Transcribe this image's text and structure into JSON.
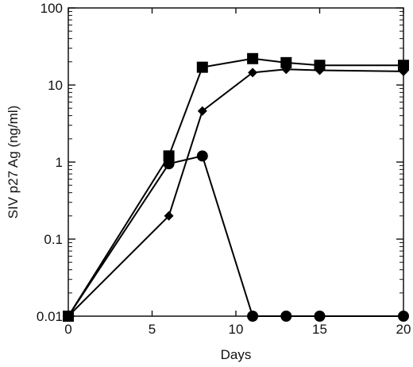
{
  "chart_data": {
    "type": "line",
    "title": "",
    "xlabel": "Days",
    "ylabel": "SIV p27 Ag (ng/ml)",
    "xlim": [
      0,
      20
    ],
    "ylim": [
      0.01,
      100
    ],
    "yscale": "log",
    "grid": false,
    "legend": "none",
    "x_ticks": [
      0,
      5,
      10,
      15,
      20
    ],
    "x_tick_labels": [
      "0",
      "5",
      "10",
      "15",
      "20"
    ],
    "y_ticks": [
      0.01,
      0.1,
      1,
      10,
      100
    ],
    "y_tick_labels": [
      "0.01",
      "0.1",
      "1",
      "10",
      "100"
    ],
    "series": [
      {
        "marker": "square",
        "color": "#000000",
        "points": [
          [
            0,
            0.01
          ],
          [
            6,
            1.2
          ],
          [
            8,
            17
          ],
          [
            11,
            22
          ],
          [
            13,
            19.5
          ],
          [
            15,
            18
          ],
          [
            20,
            18
          ]
        ]
      },
      {
        "marker": "diamond",
        "color": "#000000",
        "points": [
          [
            0,
            0.01
          ],
          [
            6,
            0.2
          ],
          [
            8,
            4.6
          ],
          [
            11,
            14.5
          ],
          [
            13,
            16
          ],
          [
            15,
            15.5
          ],
          [
            20,
            15
          ]
        ]
      },
      {
        "marker": "circle",
        "color": "#000000",
        "points": [
          [
            0,
            0.01
          ],
          [
            6,
            0.95
          ],
          [
            8,
            1.2
          ],
          [
            11,
            0.01
          ],
          [
            13,
            0.01
          ],
          [
            15,
            0.01
          ],
          [
            20,
            0.01
          ]
        ]
      }
    ]
  }
}
